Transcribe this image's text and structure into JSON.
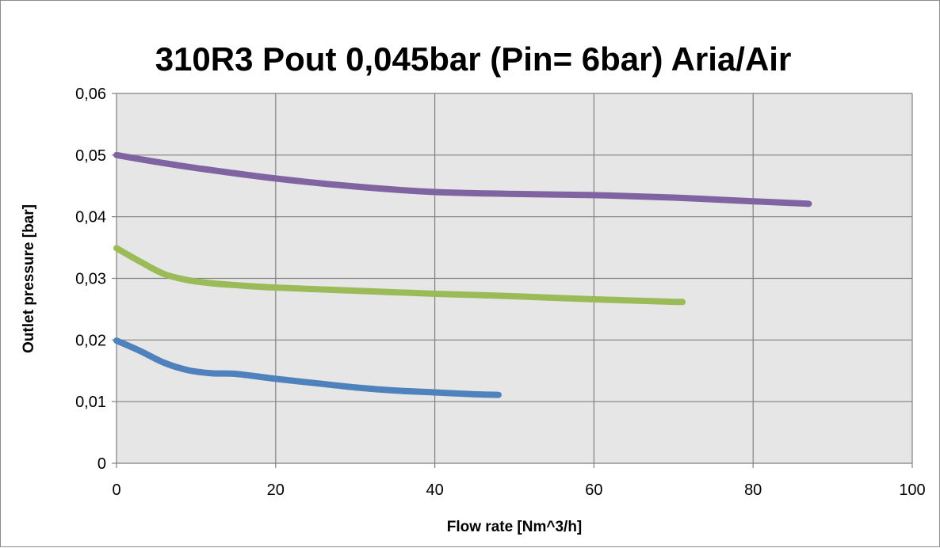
{
  "chart_data": {
    "type": "line",
    "title": "310R3  Pout 0,045bar     (Pin= 6bar) Aria/Air",
    "xlabel": "Flow rate [Nm^3/h]",
    "ylabel": "Outlet pressure [bar]",
    "xlim": [
      0,
      100
    ],
    "ylim": [
      0,
      0.06
    ],
    "x_ticks": [
      0,
      20,
      40,
      60,
      80,
      100
    ],
    "x_tick_labels": [
      "0",
      "20",
      "40",
      "60",
      "80",
      "100"
    ],
    "y_ticks": [
      0,
      0.01,
      0.02,
      0.03,
      0.04,
      0.05,
      0.06
    ],
    "y_tick_labels": [
      "0",
      "0,01",
      "0,02",
      "0,03",
      "0,04",
      "0,05",
      "0,06"
    ],
    "grid": true,
    "plot_background": "#e6e6e6",
    "grid_color": "#808080",
    "series": [
      {
        "color": "#4f81bd",
        "x": [
          0,
          3,
          6,
          9,
          12,
          15,
          20,
          25,
          30,
          35,
          40,
          45,
          48
        ],
        "y": [
          0.0199,
          0.0182,
          0.0163,
          0.0151,
          0.0146,
          0.0145,
          0.0137,
          0.013,
          0.0123,
          0.0118,
          0.0115,
          0.0112,
          0.0111
        ]
      },
      {
        "color": "#9bbb59",
        "x": [
          0,
          3,
          6,
          9,
          12,
          15,
          20,
          30,
          40,
          50,
          60,
          70,
          71
        ],
        "y": [
          0.0349,
          0.0327,
          0.0307,
          0.0297,
          0.0292,
          0.0289,
          0.0285,
          0.028,
          0.0275,
          0.0271,
          0.0266,
          0.0262,
          0.0262
        ]
      },
      {
        "color": "#8064a2",
        "x": [
          0,
          5,
          10,
          20,
          30,
          40,
          50,
          60,
          70,
          80,
          87
        ],
        "y": [
          0.05,
          0.0489,
          0.0479,
          0.0462,
          0.0449,
          0.044,
          0.0437,
          0.0435,
          0.0431,
          0.0425,
          0.0421
        ]
      }
    ]
  }
}
